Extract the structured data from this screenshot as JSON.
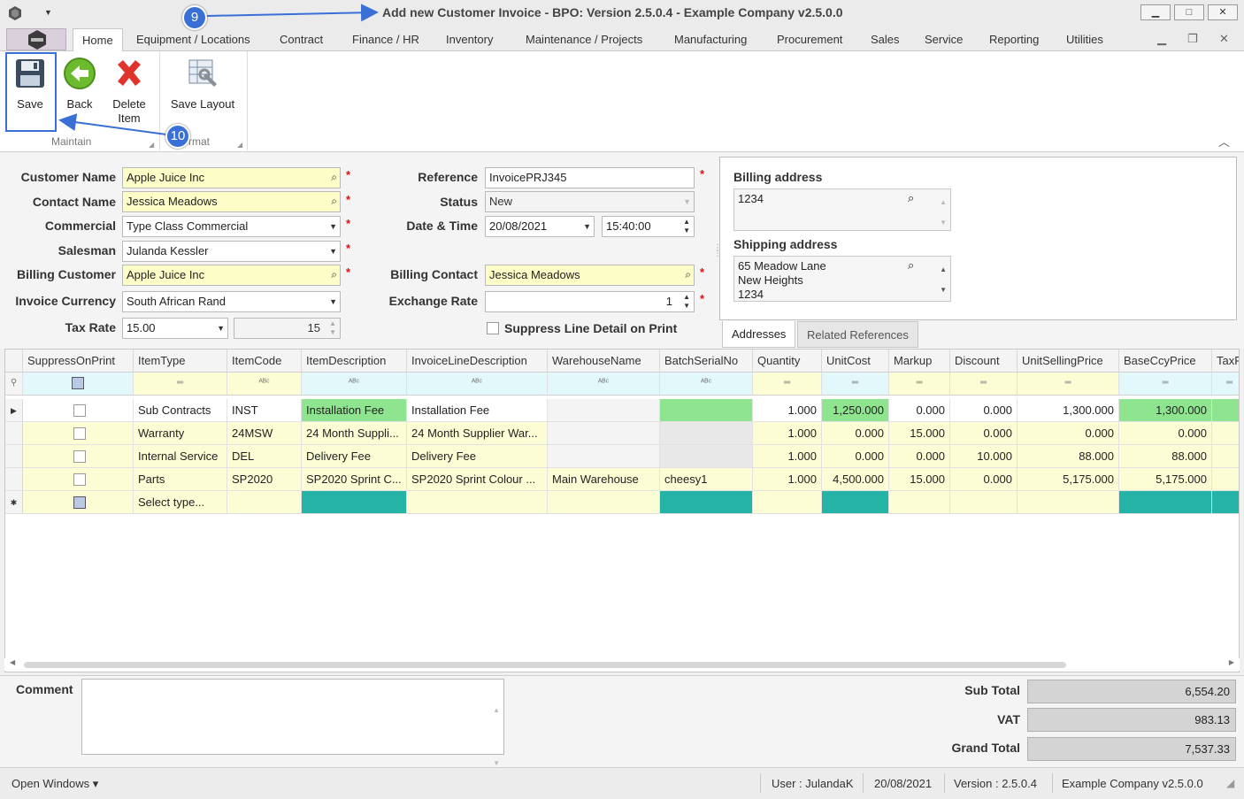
{
  "window": {
    "title": "Add new Customer Invoice - BPO: Version 2.5.0.4 - Example Company v2.5.0.0",
    "minimize": "▁",
    "maximize": "□",
    "close": "✕"
  },
  "menu": {
    "tabs": [
      "Home",
      "Equipment / Locations",
      "Contract",
      "Finance / HR",
      "Inventory",
      "Maintenance / Projects",
      "Manufacturing",
      "Procurement",
      "Sales",
      "Service",
      "Reporting",
      "Utilities"
    ]
  },
  "ribbon": {
    "save": "Save",
    "back": "Back",
    "delete_line1": "Delete",
    "delete_line2": "Item",
    "save_layout": "Save Layout",
    "group_maintain": "Maintain",
    "group_format": "rmat"
  },
  "callouts": {
    "nine": "9",
    "ten": "10"
  },
  "form": {
    "customer_name_label": "Customer Name",
    "customer_name": "Apple Juice Inc",
    "contact_name_label": "Contact Name",
    "contact_name": "Jessica Meadows",
    "commercial_label": "Commercial",
    "commercial": "Type Class Commercial",
    "salesman_label": "Salesman",
    "salesman": "Julanda Kessler",
    "billing_customer_label": "Billing Customer",
    "billing_customer": "Apple Juice Inc",
    "invoice_currency_label": "Invoice Currency",
    "invoice_currency": "South African Rand",
    "tax_rate_label": "Tax Rate",
    "tax_rate": "15.00",
    "tax_rate_value": "15",
    "reference_label": "Reference",
    "reference": "InvoicePRJ345",
    "status_label": "Status",
    "status": "New",
    "date_time_label": "Date & Time",
    "date": "20/08/2021",
    "time": "15:40:00",
    "billing_contact_label": "Billing Contact",
    "billing_contact": "Jessica Meadows",
    "exchange_rate_label": "Exchange Rate",
    "exchange_rate": "1",
    "suppress_label": "Suppress Line Detail on Print",
    "required_mark": "*"
  },
  "addresses": {
    "billing_label": "Billing address",
    "billing": "1234",
    "shipping_label": "Shipping address",
    "shipping_line1": "65 Meadow Lane",
    "shipping_line2": "New Heights",
    "shipping_line3": "1234",
    "tab_addresses": "Addresses",
    "tab_related": "Related References"
  },
  "grid": {
    "columns": [
      "SuppressOnPrint",
      "ItemType",
      "ItemCode",
      "ItemDescription",
      "InvoiceLineDescription",
      "WarehouseName",
      "BatchSerialNo",
      "Quantity",
      "UnitCost",
      "Markup",
      "Discount",
      "UnitSellingPrice",
      "BaseCcyPrice",
      "TaxR"
    ],
    "rows": [
      [
        "",
        "Sub Contracts",
        "INST",
        "Installation Fee",
        "Installation Fee",
        "",
        "",
        "1.000",
        "1,250.000",
        "0.000",
        "0.000",
        "1,300.000",
        "1,300.000",
        ""
      ],
      [
        "",
        "Warranty",
        "24MSW",
        "24 Month Suppli...",
        "24 Month Supplier War...",
        "",
        "",
        "1.000",
        "0.000",
        "15.000",
        "0.000",
        "0.000",
        "0.000",
        ""
      ],
      [
        "",
        "Internal Service",
        "DEL",
        "Delivery Fee",
        "Delivery Fee",
        "",
        "",
        "1.000",
        "0.000",
        "0.000",
        "10.000",
        "88.000",
        "88.000",
        ""
      ],
      [
        "",
        "Parts",
        "SP2020",
        "SP2020 Sprint C...",
        "SP2020 Sprint Colour ...",
        "Main Warehouse",
        "cheesy1",
        "1.000",
        "4,500.000",
        "15.000",
        "0.000",
        "5,175.000",
        "5,175.000",
        ""
      ]
    ],
    "new_row_placeholder": "Select type..."
  },
  "bottom": {
    "comment_label": "Comment",
    "sub_total_label": "Sub Total",
    "sub_total": "6,554.20",
    "vat_label": "VAT",
    "vat": "983.13",
    "grand_total_label": "Grand Total",
    "grand_total": "7,537.33"
  },
  "status": {
    "open_windows": "Open Windows ▾",
    "user": "User : JulandaK",
    "date": "20/08/2021",
    "version": "Version : 2.5.0.4",
    "company": "Example Company v2.5.0.0"
  }
}
